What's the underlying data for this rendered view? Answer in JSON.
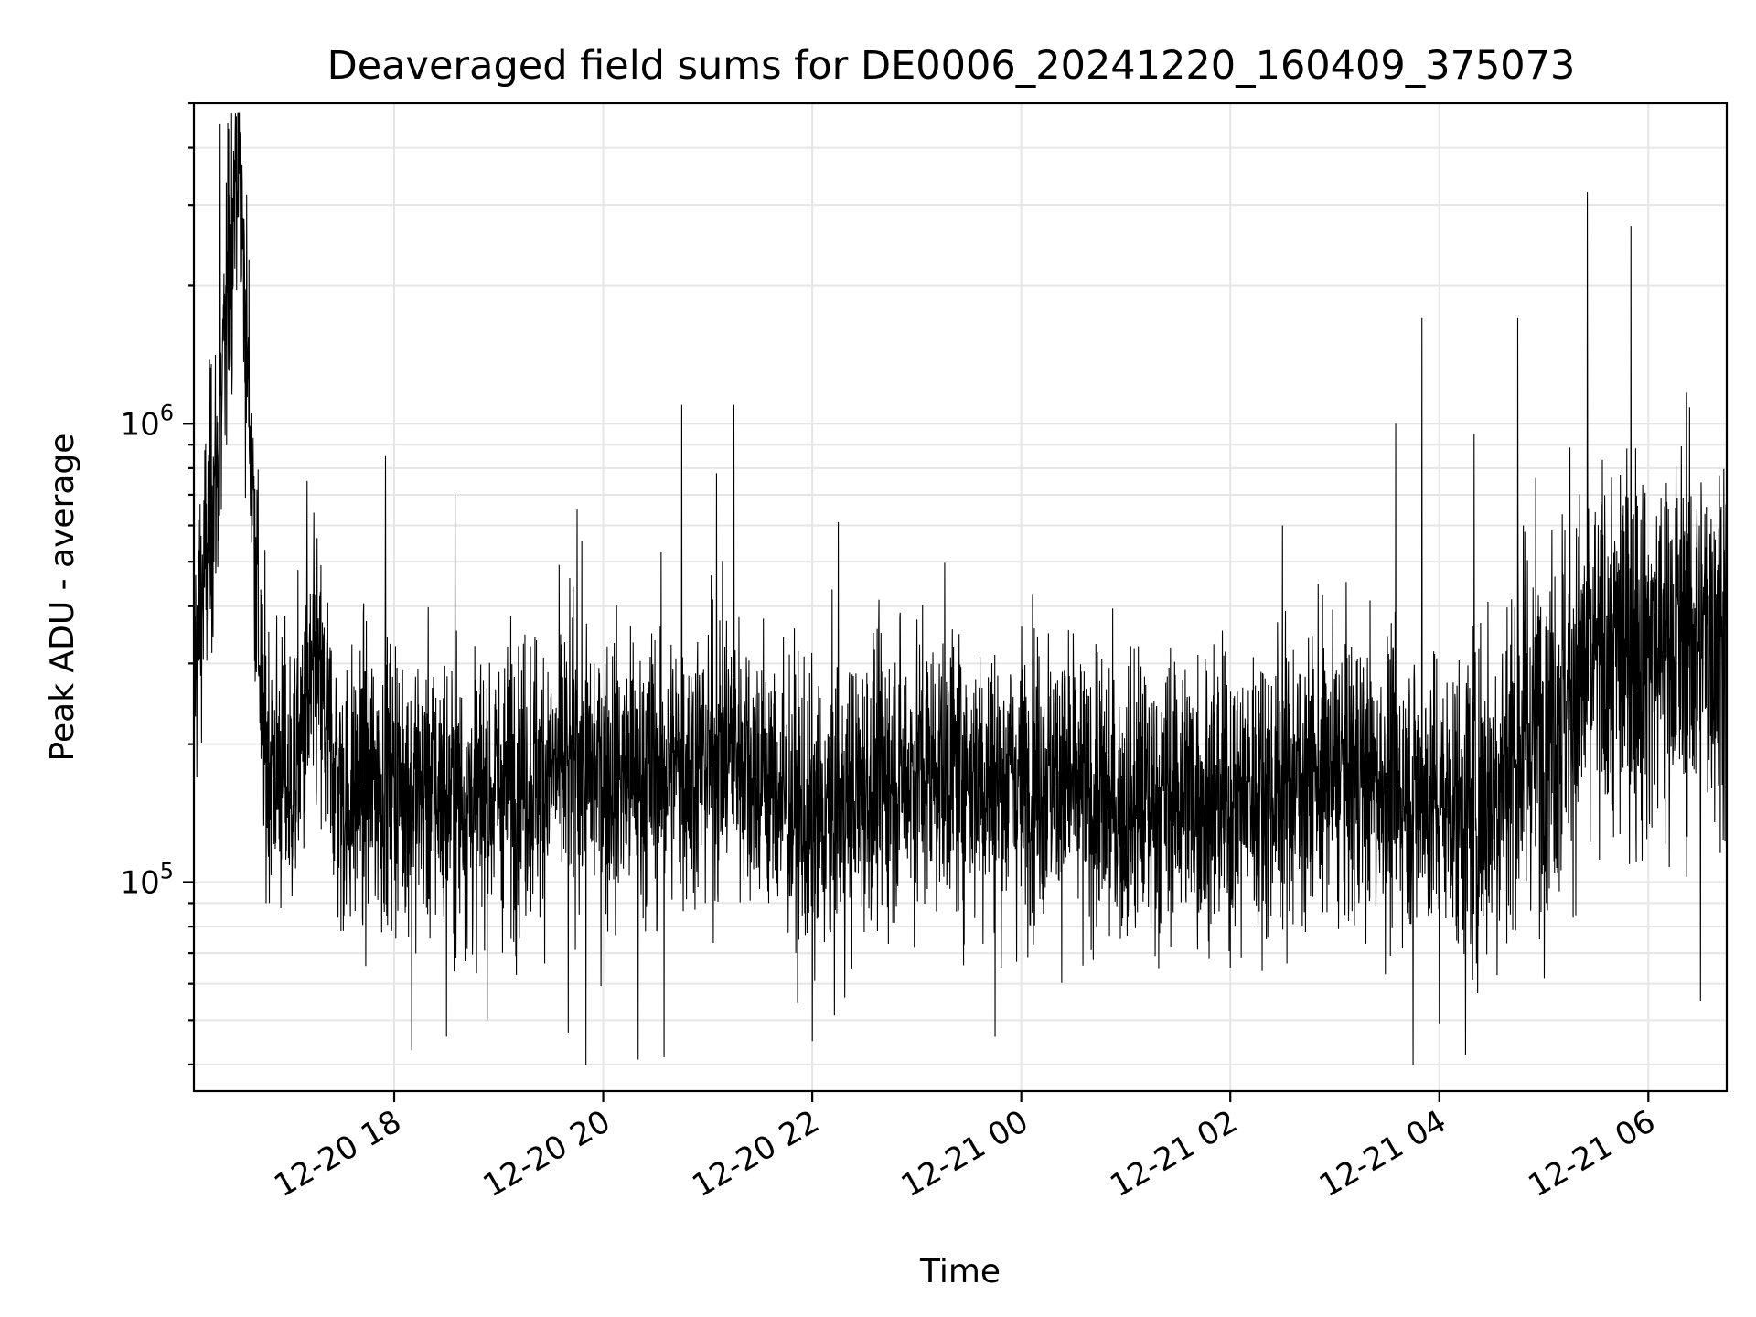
{
  "chart_data": {
    "type": "line",
    "title": "Deaveraged field sums for DE0006_20241220_160409_375073",
    "xlabel": "Time",
    "ylabel": "Peak ADU - average",
    "x_scale": "time",
    "y_scale": "log",
    "xlim": [
      "2024-12-20T16:05",
      "2024-12-21T06:45"
    ],
    "ylim": [
      35000,
      5000000
    ],
    "grid": true,
    "x_ticks": [
      {
        "value": "2024-12-20T18:00",
        "label": "12-20 18"
      },
      {
        "value": "2024-12-20T20:00",
        "label": "12-20 20"
      },
      {
        "value": "2024-12-20T22:00",
        "label": "12-20 22"
      },
      {
        "value": "2024-12-21T00:00",
        "label": "12-21 00"
      },
      {
        "value": "2024-12-21T02:00",
        "label": "12-21 02"
      },
      {
        "value": "2024-12-21T04:00",
        "label": "12-21 04"
      },
      {
        "value": "2024-12-21T06:00",
        "label": "12-21 06"
      }
    ],
    "y_ticks": [
      {
        "value": 100000,
        "base": "10",
        "exponent": "5"
      },
      {
        "value": 1000000,
        "base": "10",
        "exponent": "6"
      }
    ],
    "series": [
      {
        "color": "#000000",
        "points": [
          [
            "2024-12-20T16:05",
            300000
          ],
          [
            "2024-12-20T16:20",
            900000
          ],
          [
            "2024-12-20T16:30",
            4500000
          ],
          [
            "2024-12-20T16:45",
            200000
          ],
          [
            "2024-12-20T17:00",
            160000
          ],
          [
            "2024-12-20T17:15",
            280000
          ],
          [
            "2024-12-20T17:30",
            150000
          ],
          [
            "2024-12-20T17:45",
            165000
          ],
          [
            "2024-12-20T18:00",
            170000
          ],
          [
            "2024-12-20T18:15",
            160000
          ],
          [
            "2024-12-20T18:30",
            155000
          ],
          [
            "2024-12-20T18:45",
            150000
          ],
          [
            "2024-12-20T19:00",
            160000
          ],
          [
            "2024-12-20T19:15",
            170000
          ],
          [
            "2024-12-20T19:30",
            175000
          ],
          [
            "2024-12-20T19:45",
            180000
          ],
          [
            "2024-12-20T20:00",
            175000
          ],
          [
            "2024-12-20T20:15",
            170000
          ],
          [
            "2024-12-20T20:30",
            175000
          ],
          [
            "2024-12-20T20:45",
            180000
          ],
          [
            "2024-12-20T21:00",
            185000
          ],
          [
            "2024-12-20T21:15",
            200000
          ],
          [
            "2024-12-20T21:30",
            175000
          ],
          [
            "2024-12-20T21:45",
            150000
          ],
          [
            "2024-12-20T22:00",
            130000
          ],
          [
            "2024-12-20T22:15",
            140000
          ],
          [
            "2024-12-20T22:30",
            160000
          ],
          [
            "2024-12-20T22:45",
            170000
          ],
          [
            "2024-12-20T23:00",
            175000
          ],
          [
            "2024-12-20T23:15",
            180000
          ],
          [
            "2024-12-20T23:30",
            175000
          ],
          [
            "2024-12-20T23:45",
            165000
          ],
          [
            "2024-12-21T00:00",
            170000
          ],
          [
            "2024-12-21T00:15",
            175000
          ],
          [
            "2024-12-21T00:30",
            160000
          ],
          [
            "2024-12-21T00:45",
            150000
          ],
          [
            "2024-12-21T01:00",
            145000
          ],
          [
            "2024-12-21T01:15",
            150000
          ],
          [
            "2024-12-21T01:30",
            160000
          ],
          [
            "2024-12-21T01:45",
            155000
          ],
          [
            "2024-12-21T02:00",
            150000
          ],
          [
            "2024-12-21T02:15",
            160000
          ],
          [
            "2024-12-21T02:30",
            165000
          ],
          [
            "2024-12-21T02:45",
            170000
          ],
          [
            "2024-12-21T03:00",
            175000
          ],
          [
            "2024-12-21T03:15",
            170000
          ],
          [
            "2024-12-21T03:30",
            165000
          ],
          [
            "2024-12-21T03:45",
            160000
          ],
          [
            "2024-12-21T04:00",
            150000
          ],
          [
            "2024-12-21T04:15",
            145000
          ],
          [
            "2024-12-21T04:30",
            160000
          ],
          [
            "2024-12-21T04:45",
            200000
          ],
          [
            "2024-12-21T05:00",
            230000
          ],
          [
            "2024-12-21T05:15",
            260000
          ],
          [
            "2024-12-21T05:30",
            300000
          ],
          [
            "2024-12-21T05:45",
            320000
          ],
          [
            "2024-12-21T06:00",
            330000
          ],
          [
            "2024-12-21T06:15",
            340000
          ],
          [
            "2024-12-21T06:30",
            350000
          ],
          [
            "2024-12-21T06:45",
            360000
          ]
        ],
        "spikes": [
          [
            "2024-12-20T16:20",
            4500000
          ],
          [
            "2024-12-20T16:25",
            4400000
          ],
          [
            "2024-12-20T16:15",
            1350000
          ],
          [
            "2024-12-20T17:10",
            750000
          ],
          [
            "2024-12-20T17:55",
            850000
          ],
          [
            "2024-12-20T18:35",
            700000
          ],
          [
            "2024-12-20T19:45",
            650000
          ],
          [
            "2024-12-20T20:45",
            1100000
          ],
          [
            "2024-12-20T21:05",
            780000
          ],
          [
            "2024-12-20T21:15",
            1100000
          ],
          [
            "2024-12-20T22:15",
            610000
          ],
          [
            "2024-12-21T02:30",
            600000
          ],
          [
            "2024-12-21T03:35",
            1000000
          ],
          [
            "2024-12-21T03:50",
            1700000
          ],
          [
            "2024-12-21T04:20",
            950000
          ],
          [
            "2024-12-21T04:45",
            1700000
          ],
          [
            "2024-12-21T05:25",
            3200000
          ],
          [
            "2024-12-21T05:50",
            2700000
          ],
          [
            "2024-12-21T06:30",
            1100000
          ]
        ],
        "dips": [
          [
            "2024-12-20T18:10",
            43000
          ],
          [
            "2024-12-20T18:30",
            46000
          ],
          [
            "2024-12-20T19:40",
            47000
          ],
          [
            "2024-12-20T19:50",
            40000
          ],
          [
            "2024-12-20T20:20",
            41000
          ],
          [
            "2024-12-20T20:35",
            41500
          ],
          [
            "2024-12-20T22:00",
            45000
          ],
          [
            "2024-12-20T23:45",
            46000
          ],
          [
            "2024-12-21T03:45",
            40000
          ],
          [
            "2024-12-21T04:00",
            49000
          ],
          [
            "2024-12-21T04:15",
            42000
          ],
          [
            "2024-12-21T06:30",
            55000
          ]
        ]
      }
    ]
  }
}
